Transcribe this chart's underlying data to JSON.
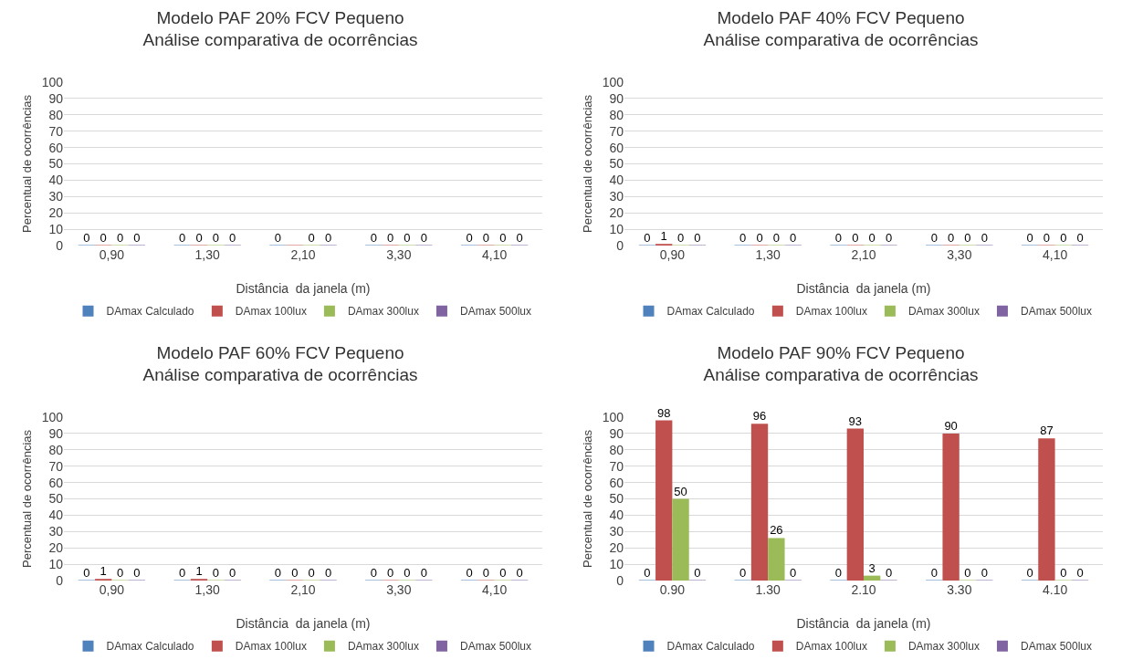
{
  "chart_data": [
    {
      "type": "bar",
      "title": "Modelo PAF 20% FCV Pequeno\nAnálise comparativa de ocorrências",
      "xlabel": "Distância  da janela (m)",
      "ylabel": "Percentual de ocorrências",
      "categories": [
        "0,90",
        "1,30",
        "2,10",
        "3,30",
        "4,10"
      ],
      "series": [
        {
          "name": "DAmax Calculado",
          "color": "#4f81bd",
          "values": [
            0,
            0,
            0,
            0,
            0
          ],
          "value_labels": [
            "0",
            "0",
            "0",
            "0",
            "0"
          ]
        },
        {
          "name": "DAmax 100lux",
          "color": "#c0504d",
          "values": [
            0,
            0,
            0,
            0,
            0
          ],
          "value_labels": [
            "0",
            "0",
            null,
            "0",
            "0"
          ]
        },
        {
          "name": "DAmax 300lux",
          "color": "#9bbb59",
          "values": [
            0,
            0,
            0,
            0,
            0
          ],
          "value_labels": [
            "0",
            "0",
            "0",
            "0",
            "0"
          ]
        },
        {
          "name": "DAmax 500lux",
          "color": "#8064a2",
          "values": [
            0,
            0,
            0,
            0,
            0
          ],
          "value_labels": [
            "0",
            "0",
            "0",
            "0",
            "0"
          ]
        }
      ],
      "ylim": [
        0,
        100
      ],
      "yticks": [
        0,
        10,
        20,
        30,
        40,
        50,
        60,
        70,
        80,
        90,
        100
      ],
      "grid": "y",
      "legend": "bottom"
    },
    {
      "type": "bar",
      "title": "Modelo PAF 40% FCV Pequeno\nAnálise comparativa de ocorrências",
      "xlabel": "Distância  da janela (m)",
      "ylabel": "Percentual de ocorrências",
      "categories": [
        "0,90",
        "1,30",
        "2,10",
        "3,30",
        "4,10"
      ],
      "series": [
        {
          "name": "DAmax Calculado",
          "color": "#4f81bd",
          "values": [
            0,
            0,
            0,
            0,
            0
          ]
        },
        {
          "name": "DAmax 100lux",
          "color": "#c0504d",
          "values": [
            1,
            0,
            0,
            0,
            0
          ]
        },
        {
          "name": "DAmax 300lux",
          "color": "#9bbb59",
          "values": [
            0,
            0,
            0,
            0,
            0
          ]
        },
        {
          "name": "DAmax 500lux",
          "color": "#8064a2",
          "values": [
            0,
            0,
            0,
            0,
            0
          ]
        }
      ],
      "ylim": [
        0,
        100
      ],
      "yticks": [
        0,
        10,
        20,
        30,
        40,
        50,
        60,
        70,
        80,
        90,
        100
      ],
      "grid": "y",
      "legend": "bottom",
      "data_labels": true
    },
    {
      "type": "bar",
      "title": "Modelo PAF 60% FCV Pequeno\nAnálise comparativa de ocorrências",
      "xlabel": "Distância  da janela (m)",
      "ylabel": "Percentual de ocorrências",
      "categories": [
        "0,90",
        "1,30",
        "2,10",
        "3,30",
        "4,10"
      ],
      "series": [
        {
          "name": "DAmax Calculado",
          "color": "#4f81bd",
          "values": [
            0,
            0,
            0,
            0,
            0
          ]
        },
        {
          "name": "DAmax 100lux",
          "color": "#c0504d",
          "values": [
            1,
            1,
            0,
            0,
            0
          ]
        },
        {
          "name": "DAmax 300lux",
          "color": "#9bbb59",
          "values": [
            0,
            0,
            0,
            0,
            0
          ]
        },
        {
          "name": "DAmax 500lux",
          "color": "#8064a2",
          "values": [
            0,
            0,
            0,
            0,
            0
          ]
        }
      ],
      "ylim": [
        0,
        100
      ],
      "yticks": [
        0,
        10,
        20,
        30,
        40,
        50,
        60,
        70,
        80,
        90,
        100
      ],
      "grid": "y",
      "legend": "bottom",
      "data_labels": true
    },
    {
      "type": "bar",
      "title": "Modelo PAF 90% FCV Pequeno\nAnálise comparativa de ocorrências",
      "xlabel": "Distância  da janela (m)",
      "ylabel": "Percentual de ocorrências",
      "categories": [
        "0.90",
        "1.30",
        "2.10",
        "3.30",
        "4.10"
      ],
      "series": [
        {
          "name": "DAmax Calculado",
          "color": "#4f81bd",
          "values": [
            0,
            0,
            0,
            0,
            0
          ]
        },
        {
          "name": "DAmax 100lux",
          "color": "#c0504d",
          "values": [
            98,
            96,
            93,
            90,
            87
          ]
        },
        {
          "name": "DAmax 300lux",
          "color": "#9bbb59",
          "values": [
            50,
            26,
            3,
            0,
            0
          ]
        },
        {
          "name": "DAmax 500lux",
          "color": "#8064a2",
          "values": [
            0,
            0,
            0,
            0,
            0
          ]
        }
      ],
      "ylim": [
        0,
        100
      ],
      "yticks": [
        0,
        10,
        20,
        30,
        40,
        50,
        60,
        70,
        80,
        90,
        100
      ],
      "grid": "y",
      "legend": "bottom",
      "data_labels": true
    }
  ]
}
